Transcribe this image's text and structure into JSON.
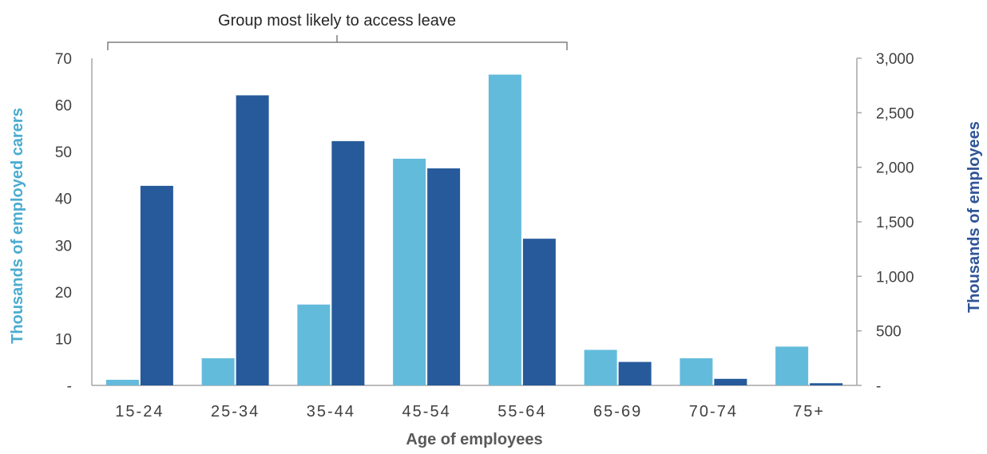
{
  "chart_data": {
    "type": "bar",
    "annotation": "Group most likely to access leave",
    "categories": [
      "15-24",
      "25-34",
      "35-44",
      "45-54",
      "55-64",
      "65-69",
      "70-74",
      "75+"
    ],
    "xlabel": "Age of employees",
    "ylabel_left": "Thousands of  employed carers",
    "ylabel_right": "Thousands of  employees",
    "ylim_left": [
      0,
      70
    ],
    "ylim_right": [
      0,
      3000
    ],
    "yticks_left": [
      "-",
      "10",
      "20",
      "30",
      "40",
      "50",
      "60",
      "70"
    ],
    "yticks_right": [
      "-",
      "500",
      "1,000",
      "1,500",
      "2,000",
      "2,500",
      "3,000"
    ],
    "grid": false,
    "series": [
      {
        "axis": "left",
        "color": "#63BBDB",
        "values": [
          1.2,
          5.8,
          17.3,
          48.5,
          66.5,
          7.6,
          5.8,
          8.3
        ]
      },
      {
        "axis": "right",
        "color": "#265A9B",
        "values": [
          1830,
          2660,
          2240,
          1990,
          1345,
          215,
          60,
          20
        ]
      }
    ],
    "colors": {
      "left_title": "#4BACD0",
      "right_title": "#2F5597",
      "axis": "#A6A6A6"
    }
  }
}
